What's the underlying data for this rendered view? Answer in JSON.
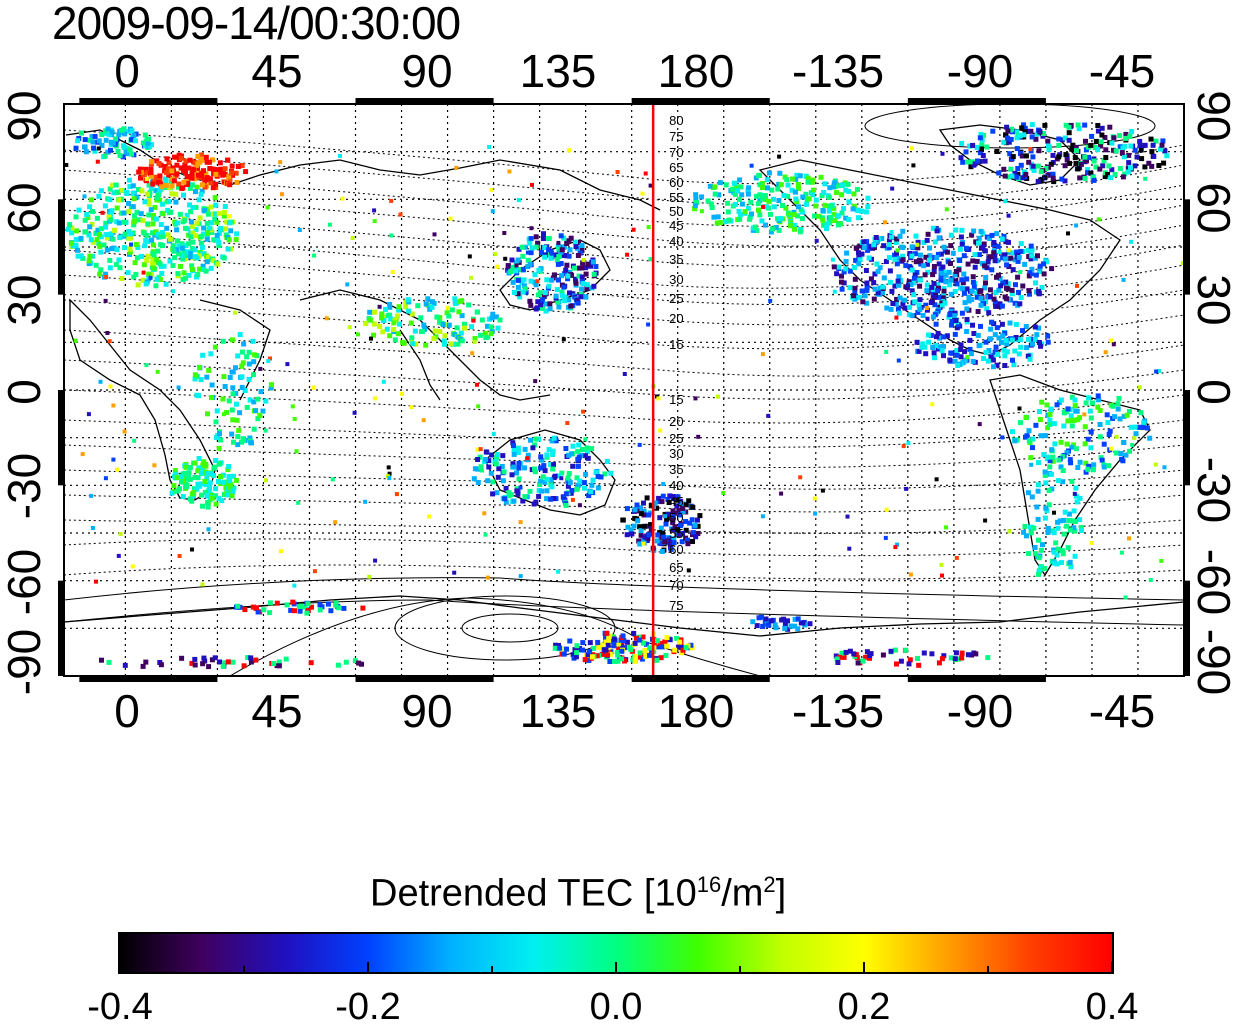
{
  "timestamp": "2009-09-14/00:30:00",
  "longitude_labels": [
    "0",
    "45",
    "90",
    "135",
    "180",
    "-135",
    "-90",
    "-45"
  ],
  "latitude_labels": [
    "90",
    "60",
    "30",
    "0",
    "-30",
    "-60",
    "-90"
  ],
  "magnetic_latitude_labels_north": [
    "80",
    "75",
    "70",
    "65",
    "60",
    "55",
    "50",
    "45",
    "40",
    "35",
    "30",
    "25",
    "20",
    "15"
  ],
  "magnetic_latitude_labels_south": [
    "15",
    "20",
    "25",
    "30",
    "35",
    "40",
    "45",
    "50",
    "55",
    "60",
    "65",
    "70",
    "75"
  ],
  "terminator_longitude": 172,
  "terminator_color": "#ff0000",
  "colorbar": {
    "title_text": "Detrended TEC  [10",
    "title_exponent": "16",
    "title_unit": "/m",
    "title_unit_exponent": "2",
    "title_close": "]",
    "min": -0.4,
    "max": 0.4,
    "tick_labels": [
      "-0.4",
      "-0.2",
      "0.0",
      "0.2",
      "0.4"
    ],
    "colors": [
      "#000000",
      "#400060",
      "#2010c0",
      "#0040ff",
      "#00b0ff",
      "#00f0f0",
      "#00ff80",
      "#40ff00",
      "#c0ff00",
      "#ffff00",
      "#ffa000",
      "#ff4000",
      "#ff0000"
    ]
  },
  "map": {
    "lon_range": [
      -20,
      345
    ],
    "lat_range": [
      -90,
      90
    ],
    "grid_dotted": true,
    "frame_style": "alternating black-white segments"
  }
}
